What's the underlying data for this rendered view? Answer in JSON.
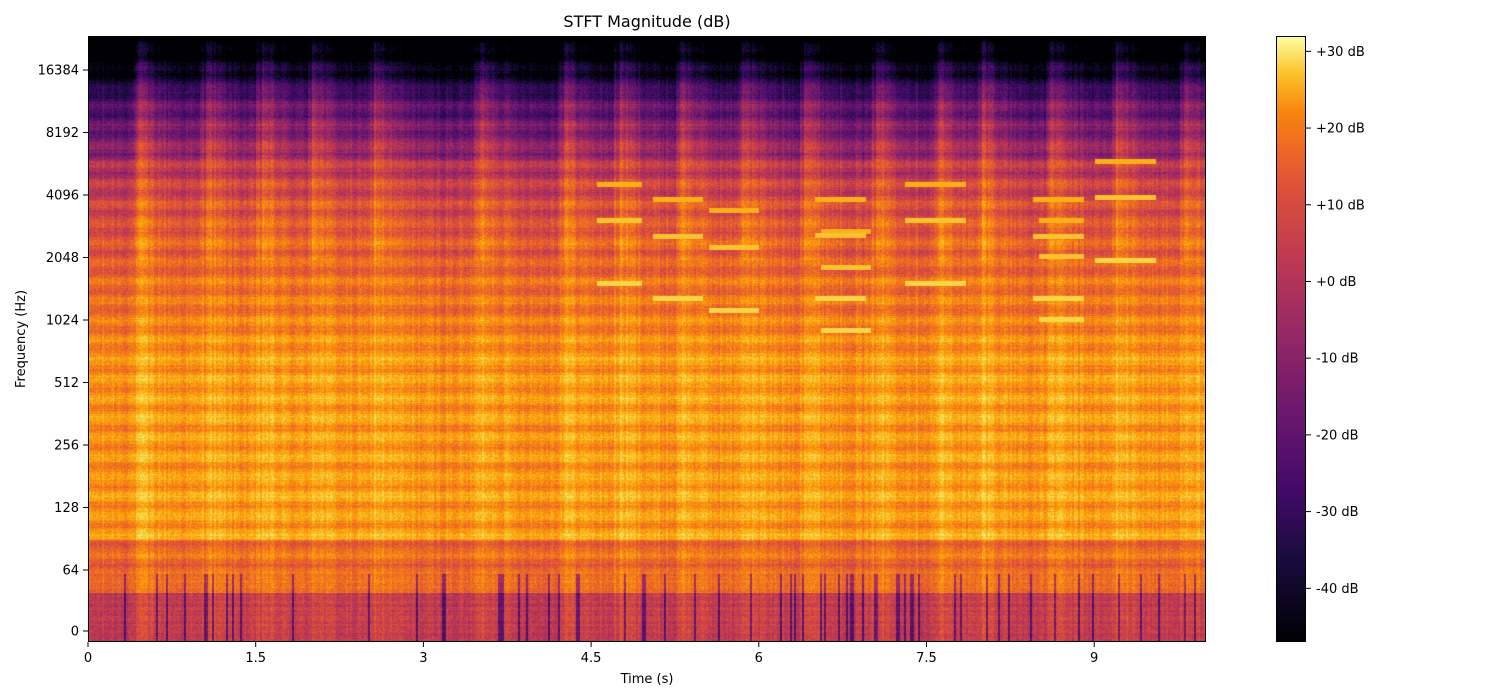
{
  "chart_data": {
    "type": "heatmap",
    "title": "STFT Magnitude (dB)",
    "xlabel": "Time (s)",
    "ylabel": "Frequency (Hz)",
    "x_range": [
      0,
      10.0
    ],
    "x_ticks": [
      0,
      1.5,
      3,
      4.5,
      6,
      7.5,
      9
    ],
    "x_tick_labels": [
      "0",
      "1.5",
      "3",
      "4.5",
      "6",
      "7.5",
      "9"
    ],
    "y_scale": "symlog (log2 ticks)",
    "y_ticks": [
      0,
      64,
      128,
      256,
      512,
      1024,
      2048,
      4096,
      8192,
      16384
    ],
    "y_tick_labels": [
      "0",
      "64",
      "128",
      "256",
      "512",
      "1024",
      "2048",
      "4096",
      "8192",
      "16384"
    ],
    "colormap": "inferno",
    "colorbar": {
      "range": [
        -47,
        32
      ],
      "ticks": [
        30,
        20,
        10,
        0,
        -10,
        -20,
        -30,
        -40
      ],
      "tick_labels": [
        "+30 dB",
        "+20 dB",
        "+10 dB",
        "+0 dB",
        "-10 dB",
        "-20 dB",
        "-30 dB",
        "-40 dB"
      ]
    },
    "onset_times": [
      0.45,
      1.05,
      1.55,
      2.0,
      2.55,
      3.5,
      4.25,
      4.75,
      5.3,
      5.85,
      6.4,
      7.05,
      7.6,
      8.0,
      8.6,
      9.2,
      9.8
    ],
    "pitch_events": [
      {
        "t0": 4.55,
        "t1": 4.95,
        "f": 1550
      },
      {
        "t0": 5.05,
        "t1": 5.5,
        "f": 1300
      },
      {
        "t0": 5.55,
        "t1": 6.0,
        "f": 1150
      },
      {
        "t0": 6.5,
        "t1": 6.95,
        "f": 1310
      },
      {
        "t0": 6.55,
        "t1": 7.0,
        "f": 920
      },
      {
        "t0": 7.3,
        "t1": 7.85,
        "f": 1550
      },
      {
        "t0": 8.45,
        "t1": 8.9,
        "f": 1300
      },
      {
        "t0": 8.5,
        "t1": 8.9,
        "f": 1040
      },
      {
        "t0": 9.0,
        "t1": 9.55,
        "f": 2000
      }
    ]
  }
}
